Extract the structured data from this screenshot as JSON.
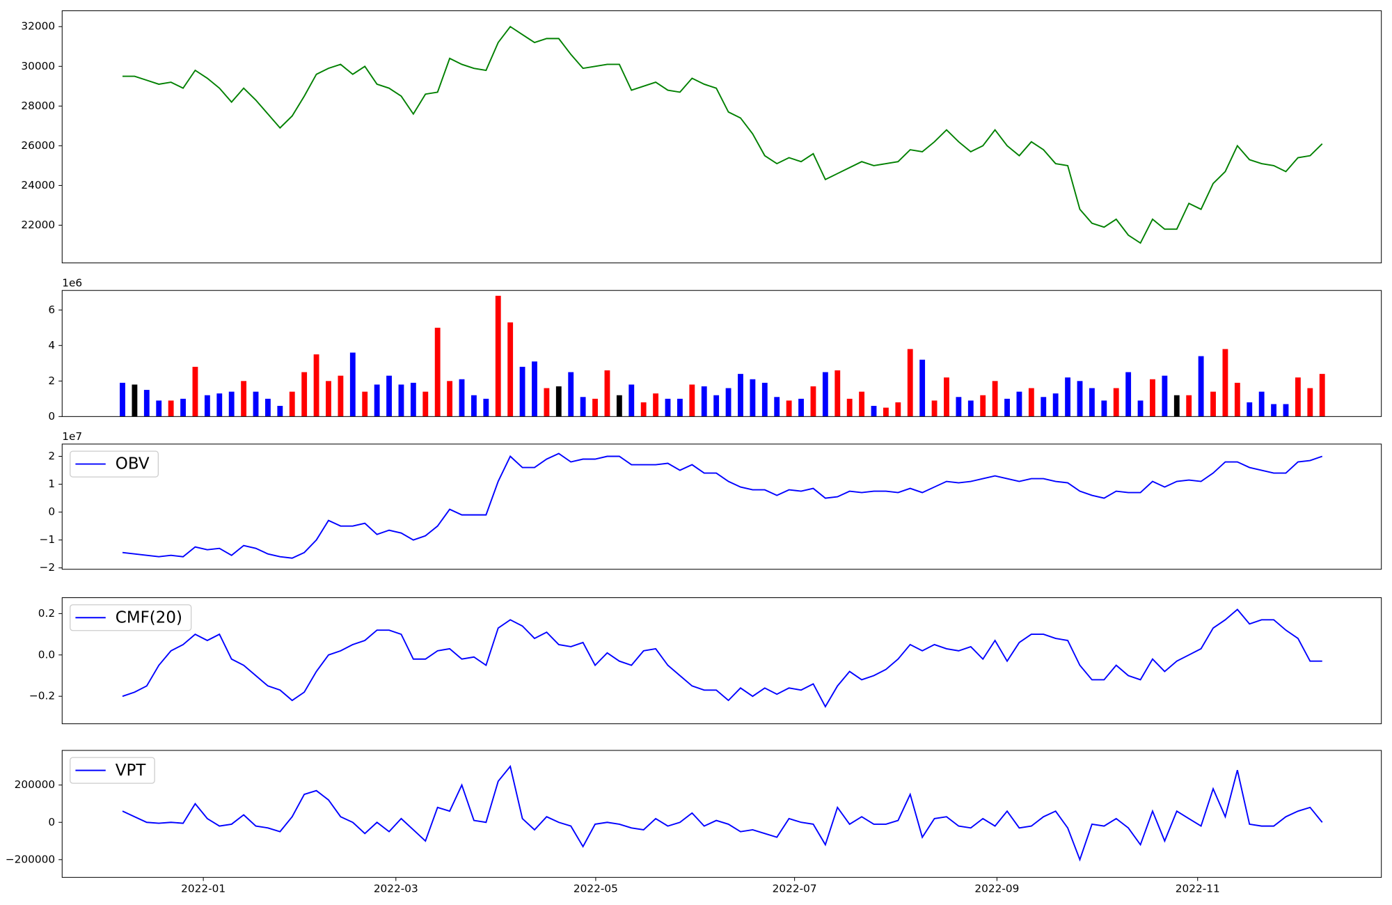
{
  "chart_data": [
    {
      "type": "line",
      "xlim": [
        -4.98,
        103.88
      ],
      "ylim": [
        20100,
        32800
      ],
      "yticks": [
        22000,
        24000,
        26000,
        28000,
        30000,
        32000
      ],
      "series": [
        {
          "color": "#008000",
          "values": [
            29500,
            29500,
            29300,
            29100,
            29200,
            28900,
            29800,
            29400,
            28900,
            28200,
            28900,
            28300,
            27600,
            26900,
            27500,
            28500,
            29600,
            29900,
            30100,
            29600,
            30000,
            29100,
            28900,
            28500,
            27600,
            28600,
            28700,
            30400,
            30100,
            29900,
            29800,
            31200,
            32000,
            31600,
            31200,
            31400,
            31400,
            30600,
            29900,
            30000,
            30100,
            30100,
            28800,
            29000,
            29200,
            28800,
            28700,
            29400,
            29100,
            28900,
            27700,
            27400,
            26600,
            25500,
            25100,
            25400,
            25200,
            25600,
            24300,
            24600,
            24900,
            25200,
            25000,
            25100,
            25200,
            25800,
            25700,
            26200,
            26800,
            26200,
            25700,
            26000,
            26800,
            26000,
            25500,
            26200,
            25800,
            25100,
            25000,
            22800,
            22100,
            21900,
            22300,
            21500,
            21100,
            22300,
            21800,
            21800,
            23100,
            22800,
            24100,
            24700,
            26000,
            25300,
            25100,
            25000,
            24700,
            25400,
            25500,
            26100
          ]
        }
      ]
    },
    {
      "type": "bar",
      "xlim": [
        -4.98,
        103.88
      ],
      "ylim": [
        0,
        7100000
      ],
      "offset_label": "1e6",
      "yticks": [
        0,
        {
          "value": 2000000,
          "label": "2"
        },
        {
          "value": 4000000,
          "label": "4"
        },
        {
          "value": 6000000,
          "label": "6"
        }
      ],
      "values": [
        1900000,
        1800000,
        1500000,
        900000,
        900000,
        1000000,
        2800000,
        1200000,
        1300000,
        1400000,
        2000000,
        1400000,
        1000000,
        600000,
        1400000,
        2500000,
        3500000,
        2000000,
        2300000,
        3600000,
        1400000,
        1800000,
        2300000,
        1800000,
        1900000,
        1400000,
        5000000,
        2000000,
        2100000,
        1200000,
        1000000,
        6800000,
        5300000,
        2800000,
        3100000,
        1600000,
        1700000,
        2500000,
        1100000,
        1000000,
        2600000,
        1200000,
        1800000,
        800000,
        1300000,
        1000000,
        1000000,
        1800000,
        1700000,
        1200000,
        1600000,
        2400000,
        2100000,
        1900000,
        1100000,
        900000,
        1000000,
        1700000,
        2500000,
        2600000,
        1000000,
        1400000,
        600000,
        500000,
        800000,
        3800000,
        3200000,
        900000,
        2200000,
        1100000,
        900000,
        1200000,
        2000000,
        1000000,
        1400000,
        1600000,
        1100000,
        1300000,
        2200000,
        2000000,
        1600000,
        900000,
        1600000,
        2500000,
        900000,
        2100000,
        2300000,
        1200000,
        1200000,
        3400000,
        1400000,
        3800000,
        1900000,
        800000,
        1400000,
        700000,
        700000,
        2200000,
        1600000,
        2400000
      ],
      "colors": [
        "blue",
        "black",
        "blue",
        "blue",
        "red",
        "blue",
        "red",
        "blue",
        "blue",
        "blue",
        "red",
        "blue",
        "blue",
        "blue",
        "red",
        "red",
        "red",
        "red",
        "red",
        "blue",
        "red",
        "blue",
        "blue",
        "blue",
        "blue",
        "red",
        "red",
        "red",
        "blue",
        "blue",
        "blue",
        "red",
        "red",
        "blue",
        "blue",
        "red",
        "black",
        "blue",
        "blue",
        "red",
        "red",
        "black",
        "blue",
        "red",
        "red",
        "blue",
        "blue",
        "red",
        "blue",
        "blue",
        "blue",
        "blue",
        "blue",
        "blue",
        "blue",
        "red",
        "blue",
        "red",
        "blue",
        "red",
        "red",
        "red",
        "blue",
        "red",
        "red",
        "red",
        "blue",
        "red",
        "red",
        "blue",
        "blue",
        "red",
        "red",
        "blue",
        "blue",
        "red",
        "blue",
        "blue",
        "blue",
        "blue",
        "blue",
        "blue",
        "red",
        "blue",
        "blue",
        "red",
        "blue",
        "black",
        "red",
        "blue",
        "red",
        "red",
        "red",
        "blue",
        "blue",
        "blue",
        "blue",
        "red",
        "red",
        "red"
      ]
    },
    {
      "type": "line",
      "xlim": [
        -4.98,
        103.88
      ],
      "ylim": [
        -20500000,
        24400000
      ],
      "offset_label": "1e7",
      "legend": "upper left",
      "yticks": [
        {
          "value": -20000000,
          "label": "−2"
        },
        {
          "value": -10000000,
          "label": "−1"
        },
        0,
        {
          "value": 10000000,
          "label": "1"
        },
        {
          "value": 20000000,
          "label": "2"
        }
      ],
      "series": [
        {
          "name": "OBV",
          "color": "#0000ff",
          "values": [
            -14500000,
            -15000000,
            -15500000,
            -16000000,
            -15500000,
            -16000000,
            -12500000,
            -13500000,
            -13000000,
            -15500000,
            -12000000,
            -13000000,
            -15000000,
            -16000000,
            -16500000,
            -14500000,
            -10000000,
            -3000000,
            -5000000,
            -5000000,
            -4000000,
            -8000000,
            -6500000,
            -7500000,
            -10000000,
            -8500000,
            -5000000,
            1000000,
            -1000000,
            -1000000,
            -1000000,
            11000000,
            20000000,
            16000000,
            16000000,
            19000000,
            21000000,
            18000000,
            19000000,
            19000000,
            20000000,
            20000000,
            17000000,
            17000000,
            17000000,
            17500000,
            15000000,
            17000000,
            14000000,
            14000000,
            11000000,
            9000000,
            8000000,
            8000000,
            6000000,
            8000000,
            7500000,
            8500000,
            5000000,
            5500000,
            7500000,
            7000000,
            7500000,
            7500000,
            7000000,
            8500000,
            7000000,
            9000000,
            11000000,
            10500000,
            11000000,
            12000000,
            13000000,
            12000000,
            11000000,
            12000000,
            12000000,
            11000000,
            10500000,
            7500000,
            6000000,
            5000000,
            7500000,
            7000000,
            7000000,
            11000000,
            9000000,
            11000000,
            11500000,
            11000000,
            14000000,
            18000000,
            18000000,
            16000000,
            15000000,
            14000000,
            14000000,
            18000000,
            18500000,
            20000000
          ]
        }
      ]
    },
    {
      "type": "line",
      "xlim": [
        -4.98,
        103.88
      ],
      "ylim": [
        -0.333,
        0.277
      ],
      "legend": "upper left",
      "yticks": [
        {
          "value": -0.2,
          "label": "−0.2"
        },
        {
          "value": 0,
          "label": "0.0"
        },
        0.2
      ],
      "series": [
        {
          "name": "CMF(20)",
          "color": "#0000ff",
          "values": [
            -0.2,
            -0.18,
            -0.15,
            -0.05,
            0.02,
            0.05,
            0.1,
            0.07,
            0.1,
            -0.02,
            -0.05,
            -0.1,
            -0.15,
            -0.17,
            -0.22,
            -0.18,
            -0.08,
            0.0,
            0.02,
            0.05,
            0.07,
            0.12,
            0.12,
            0.1,
            -0.02,
            -0.02,
            0.02,
            0.03,
            -0.02,
            -0.01,
            -0.05,
            0.13,
            0.17,
            0.14,
            0.08,
            0.11,
            0.05,
            0.04,
            0.06,
            -0.05,
            0.01,
            -0.03,
            -0.05,
            0.02,
            0.03,
            -0.05,
            -0.1,
            -0.15,
            -0.17,
            -0.17,
            -0.22,
            -0.16,
            -0.2,
            -0.16,
            -0.19,
            -0.16,
            -0.17,
            -0.14,
            -0.25,
            -0.15,
            -0.08,
            -0.12,
            -0.1,
            -0.07,
            -0.02,
            0.05,
            0.02,
            0.05,
            0.03,
            0.02,
            0.04,
            -0.02,
            0.07,
            -0.03,
            0.06,
            0.1,
            0.1,
            0.08,
            0.07,
            -0.05,
            -0.12,
            -0.12,
            -0.05,
            -0.1,
            -0.12,
            -0.02,
            -0.08,
            -0.03,
            0.0,
            0.03,
            0.13,
            0.17,
            0.22,
            0.15,
            0.17,
            0.17,
            0.12,
            0.08,
            -0.03,
            -0.03
          ]
        }
      ]
    },
    {
      "type": "line",
      "xlim": [
        -4.98,
        103.88
      ],
      "ylim": [
        -295200,
        385700
      ],
      "legend": "upper left",
      "yticks": [
        {
          "value": -200000,
          "label": "−200000"
        },
        0,
        200000
      ],
      "xticks": [
        {
          "value": 6.67,
          "label": "2022-01"
        },
        {
          "value": 22.56,
          "label": "2022-03"
        },
        {
          "value": 39.05,
          "label": "2022-05"
        },
        {
          "value": 55.46,
          "label": "2022-07"
        },
        {
          "value": 72.16,
          "label": "2022-09"
        },
        {
          "value": 88.72,
          "label": "2022-11"
        }
      ],
      "series": [
        {
          "name": "VPT",
          "color": "#0000ff",
          "values": [
            60000,
            30000,
            0,
            -5000,
            0,
            -5000,
            100000,
            20000,
            -20000,
            -10000,
            40000,
            -20000,
            -30000,
            -50000,
            30000,
            150000,
            170000,
            120000,
            30000,
            0,
            -60000,
            0,
            -50000,
            20000,
            -40000,
            -100000,
            80000,
            60000,
            200000,
            10000,
            0,
            220000,
            300000,
            20000,
            -40000,
            30000,
            0,
            -20000,
            -130000,
            -10000,
            0,
            -10000,
            -30000,
            -40000,
            20000,
            -20000,
            0,
            50000,
            -20000,
            10000,
            -10000,
            -50000,
            -40000,
            -60000,
            -80000,
            20000,
            0,
            -10000,
            -120000,
            80000,
            -10000,
            30000,
            -10000,
            -10000,
            10000,
            150000,
            -80000,
            20000,
            30000,
            -20000,
            -30000,
            20000,
            -20000,
            60000,
            -30000,
            -20000,
            30000,
            60000,
            -30000,
            -200000,
            -10000,
            -20000,
            20000,
            -30000,
            -120000,
            60000,
            -100000,
            60000,
            20000,
            -20000,
            180000,
            30000,
            280000,
            -10000,
            -20000,
            -20000,
            30000,
            60000,
            80000,
            0
          ]
        }
      ]
    }
  ]
}
